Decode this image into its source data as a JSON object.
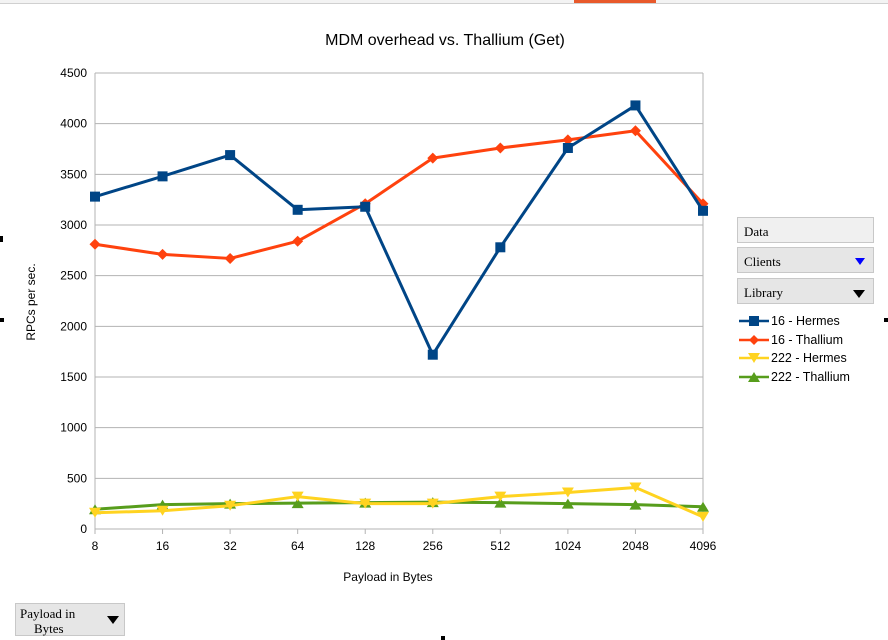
{
  "chart_data": {
    "type": "line",
    "title": "MDM overhead vs. Thallium (Get)",
    "xlabel": "Payload in Bytes",
    "ylabel": "RPCs per sec.",
    "categories": [
      "8",
      "16",
      "32",
      "64",
      "128",
      "256",
      "512",
      "1024",
      "2048",
      "4096"
    ],
    "ylim": [
      0,
      4500
    ],
    "yticks": [
      "0",
      "500",
      "1000",
      "1500",
      "2000",
      "2500",
      "3000",
      "3500",
      "4000",
      "4500"
    ],
    "grid": true,
    "legend_position": "right",
    "series": [
      {
        "name": "16 - Hermes",
        "color": "#004586",
        "marker": "square",
        "values": [
          3280,
          3480,
          3690,
          3150,
          3180,
          1720,
          2780,
          3760,
          4180,
          3140
        ]
      },
      {
        "name": "16 - Thallium",
        "color": "#ff420e",
        "marker": "diamond",
        "values": [
          2810,
          2710,
          2670,
          2840,
          3210,
          3660,
          3760,
          3840,
          3930,
          3210
        ]
      },
      {
        "name": "222 - Hermes",
        "color": "#ffd320",
        "marker": "triangle-down",
        "values": [
          160,
          180,
          230,
          320,
          250,
          250,
          320,
          360,
          410,
          120
        ]
      },
      {
        "name": "222 - Thallium",
        "color": "#579d1c",
        "marker": "triangle-up",
        "values": [
          195,
          240,
          250,
          255,
          260,
          265,
          260,
          250,
          240,
          220
        ]
      }
    ]
  },
  "controls": {
    "data_label": "Data",
    "clients_label": "Clients",
    "library_label": "Library",
    "payload_label_line1": "Payload in",
    "payload_label_line2": "Bytes"
  }
}
